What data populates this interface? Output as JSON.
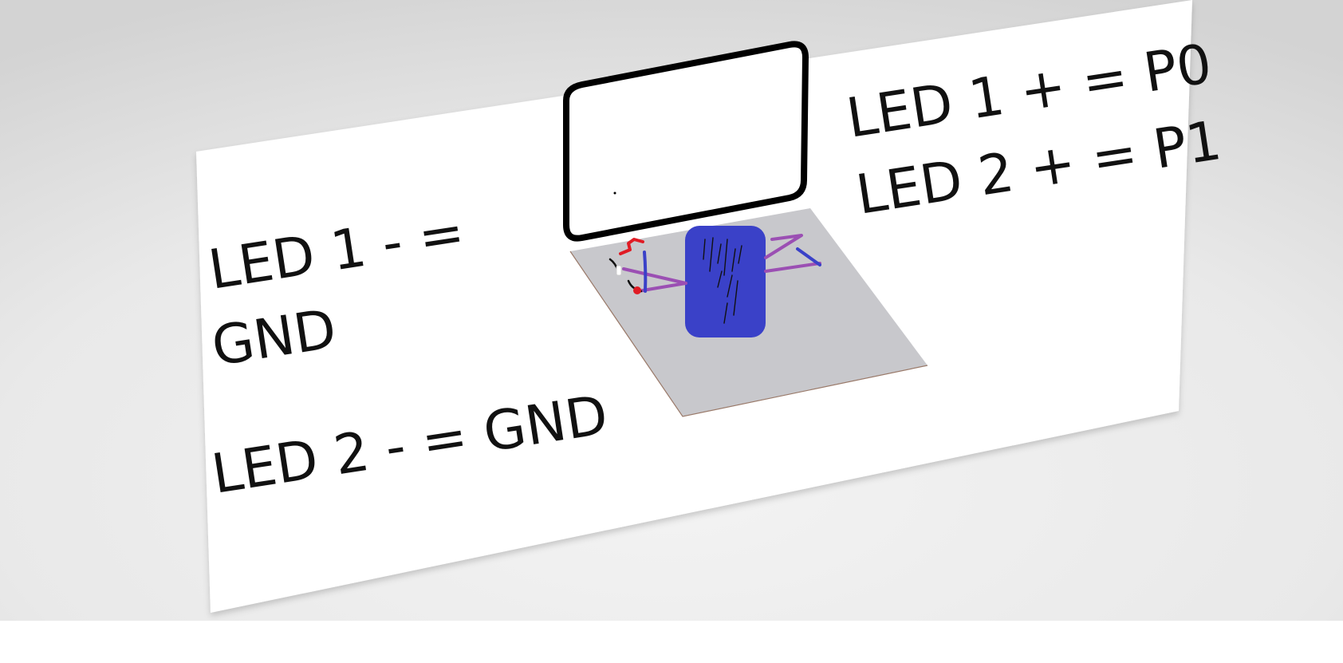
{
  "labels": {
    "led1_minus_line1": "LED 1 - =",
    "led1_minus_line2": "GND",
    "led2_minus": "LED 2 - = GND",
    "led1_plus": "LED 1 + = P0",
    "led2_plus": "LED 2 + = P1"
  },
  "colors": {
    "background_center": "#f2f2f2",
    "background_edge": "#d4d4d4",
    "board": "#ffffff",
    "plate": "#c8c8cc",
    "chip": "#3a41c8",
    "wire_purple": "#9b4fb3",
    "wire_blue": "#3a41c8",
    "wire_red": "#e01b24",
    "frame": "#000000"
  },
  "icons": {
    "frame": "screen-outline-icon",
    "chip": "microcontroller-icon"
  }
}
